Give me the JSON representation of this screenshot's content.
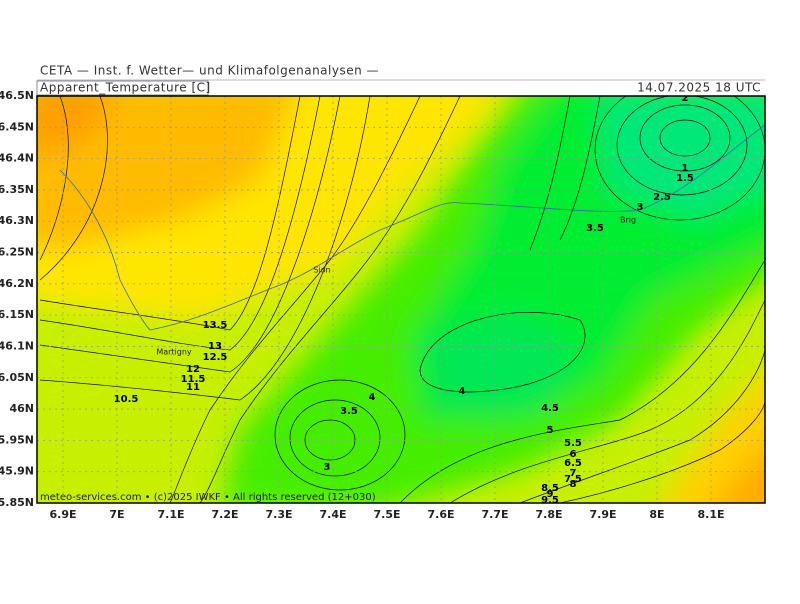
{
  "header": {
    "title": "CETA — Inst. f. Wetter— und Klimafolgenanalysen —",
    "variable": "Apparent_Temperature [C]",
    "valid_time": "14.07.2025 18 UTC"
  },
  "map": {
    "lat_labels": [
      "46.5N",
      "46.45N",
      "46.4N",
      "46.35N",
      "46.3N",
      "46.25N",
      "46.2N",
      "46.15N",
      "46.1N",
      "46.05N",
      "46N",
      "45.95N",
      "45.9N",
      "45.85N"
    ],
    "lon_labels": [
      "6.9E",
      "7E",
      "7.1E",
      "7.2E",
      "7.3E",
      "7.4E",
      "7.5E",
      "7.6E",
      "7.7E",
      "7.8E",
      "7.9E",
      "8E",
      "8.1E"
    ],
    "places": [
      "Sion",
      "Martigny",
      "Brig"
    ],
    "contour_labels": [
      "13.5",
      "13",
      "12.5",
      "12",
      "11.5",
      "11",
      "10.5",
      "3.5",
      "4",
      "3",
      "4",
      "4.5",
      "5",
      "5.5",
      "6",
      "6.5",
      "7",
      "7.5",
      "8",
      "8.5",
      "9",
      "9.5",
      "2",
      "1",
      "1.5",
      "2.5",
      "3",
      "3.5"
    ],
    "footer": "meteo-services.com • (c)2025 IWKF • All rights reserved (12+030)"
  }
}
